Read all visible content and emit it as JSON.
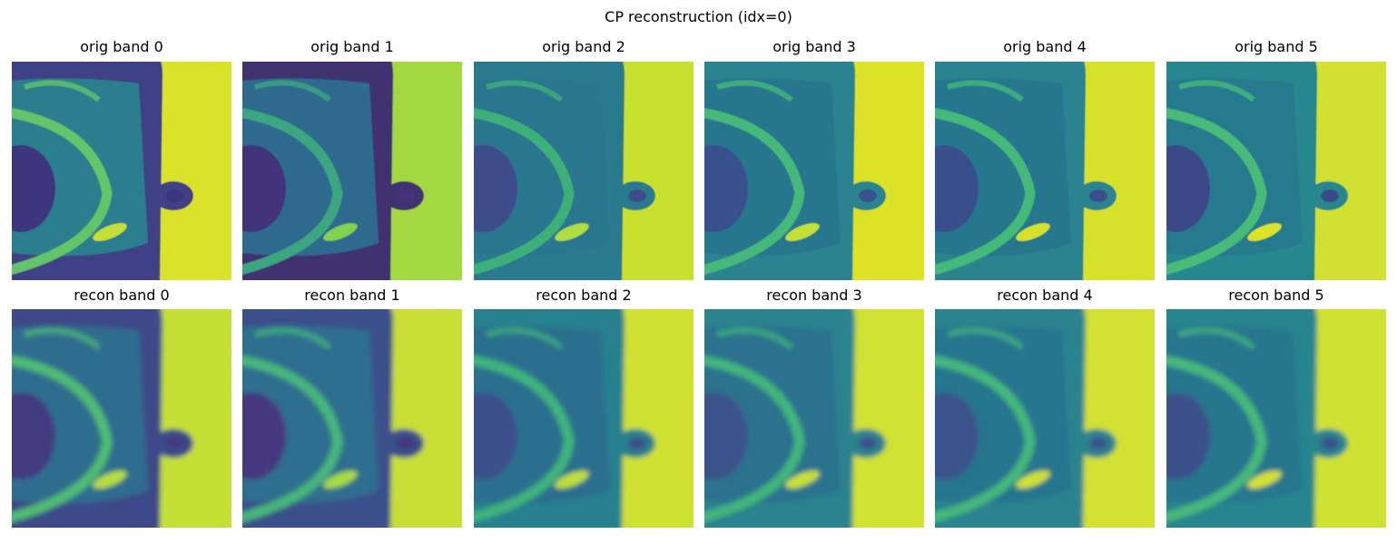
{
  "figure": {
    "title": "CP reconstruction (idx=0)",
    "colormap": "viridis",
    "colors": {
      "dark": "#440154",
      "indigo": "#3b528b",
      "teal": "#21918c",
      "green": "#5ec962",
      "yellow": "#fde725"
    }
  },
  "rows": [
    {
      "kind": "orig",
      "panels": [
        {
          "title": "orig band 0",
          "blur": 0.6,
          "frame": "#3f3f86",
          "left_bg": "#2a7e8d",
          "ring": "#64c46a",
          "blob": "#c8de38",
          "lobe": "#3c357e",
          "right": "#dbe22a"
        },
        {
          "title": "orig band 1",
          "blur": 0.6,
          "frame": "#413071",
          "left_bg": "#2d6b8e",
          "ring": "#3aa67f",
          "blob": "#82d24d",
          "lobe": "#42307a",
          "right": "#a3d83f"
        },
        {
          "title": "orig band 2",
          "blur": 0.6,
          "frame": "#2c7a8e",
          "left_bg": "#2b768e",
          "ring": "#3eb07a",
          "blob": "#aede40",
          "lobe": "#3d4d8a",
          "right": "#c8e02e"
        },
        {
          "title": "orig band 3",
          "blur": 0.6,
          "frame": "#2a838e",
          "left_bg": "#28778e",
          "ring": "#44b87a",
          "blob": "#c5e034",
          "lobe": "#38518c",
          "right": "#dce228"
        },
        {
          "title": "orig band 4",
          "blur": 0.6,
          "frame": "#2a838e",
          "left_bg": "#27778e",
          "ring": "#45b97a",
          "blob": "#d6e22c",
          "lobe": "#384f8b",
          "right": "#d6e22c"
        },
        {
          "title": "orig band 5",
          "blur": 0.6,
          "frame": "#26878e",
          "left_bg": "#267a8e",
          "ring": "#48bb78",
          "blob": "#dde328",
          "lobe": "#3b4889",
          "right": "#d0e131"
        }
      ]
    },
    {
      "kind": "recon",
      "panels": [
        {
          "title": "recon band 0",
          "blur": 2.6,
          "frame": "#3e4a89",
          "left_bg": "#2f6d8e",
          "ring": "#4fbc72",
          "blob": "#b5de3c",
          "lobe": "#433b80",
          "right": "#c5e034"
        },
        {
          "title": "recon band 1",
          "blur": 2.6,
          "frame": "#3b4f8a",
          "left_bg": "#2e6e8e",
          "ring": "#46b67a",
          "blob": "#a8db3f",
          "lobe": "#45377f",
          "right": "#c9df35"
        },
        {
          "title": "recon band 2",
          "blur": 2.6,
          "frame": "#28808e",
          "left_bg": "#2a6f8e",
          "ring": "#3fb47a",
          "blob": "#c0df38",
          "lobe": "#3b4f8a",
          "right": "#cfe232"
        },
        {
          "title": "recon band 3",
          "blur": 2.6,
          "frame": "#29838e",
          "left_bg": "#29728e",
          "ring": "#42b67a",
          "blob": "#c8e034",
          "lobe": "#3a528b",
          "right": "#d0e231"
        },
        {
          "title": "recon band 4",
          "blur": 2.6,
          "frame": "#29838e",
          "left_bg": "#28748e",
          "ring": "#44b87a",
          "blob": "#cfe232",
          "lobe": "#3a528b",
          "right": "#d2e231"
        },
        {
          "title": "recon band 5",
          "blur": 2.6,
          "frame": "#27858e",
          "left_bg": "#28768e",
          "ring": "#46b979",
          "blob": "#d4e22f",
          "lobe": "#3b4f8a",
          "right": "#cfe232"
        }
      ]
    }
  ]
}
